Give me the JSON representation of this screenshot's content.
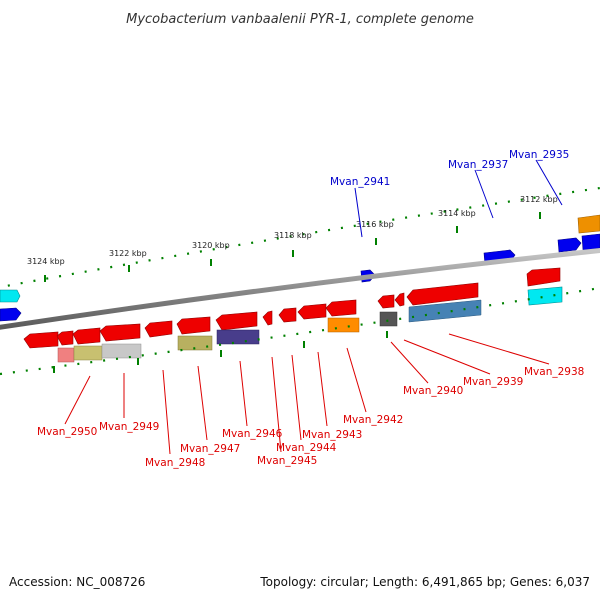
{
  "title": "Mycobacterium vanbaalenii PYR-1, complete genome",
  "footer": {
    "accession": "Accession: NC_008726",
    "summary": "Topology: circular; Length: 6,491,865 bp; Genes: 6,037"
  },
  "ruler": [
    "3124 kbp",
    "3122 kbp",
    "3120 kbp",
    "3118 kbp",
    "3116 kbp",
    "3114 kbp",
    "3112 kbp"
  ],
  "colors": {
    "forward_cds": "#0000ee",
    "reverse_cds": "#ee0000",
    "backbone": "#808080",
    "ticks": "#008000"
  },
  "forward_labels": [
    "Mvan_2941",
    "Mvan_2937",
    "Mvan_2935"
  ],
  "reverse_labels": [
    "Mvan_2950",
    "Mvan_2949",
    "Mvan_2948",
    "Mvan_2947",
    "Mvan_2946",
    "Mvan_2945",
    "Mvan_2944",
    "Mvan_2943",
    "Mvan_2942",
    "Mvan_2940",
    "Mvan_2939",
    "Mvan_2938"
  ]
}
